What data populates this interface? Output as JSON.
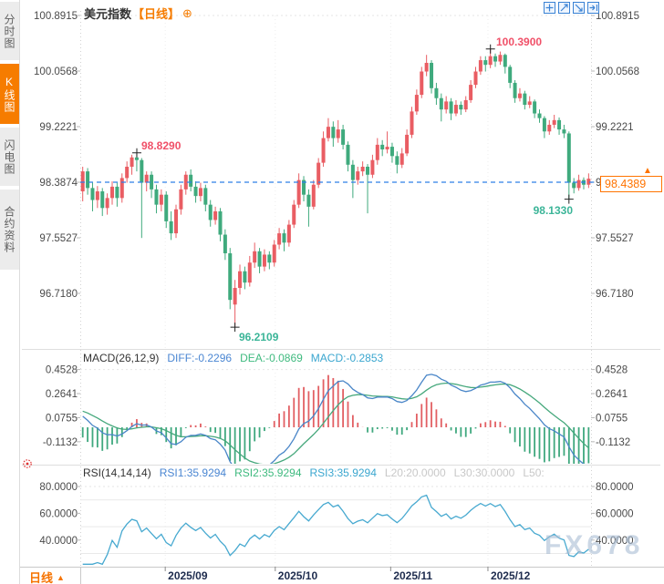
{
  "app": {
    "watermark": "FX678"
  },
  "sidebar": {
    "tabs": [
      {
        "label": "分时图",
        "active": false
      },
      {
        "label": "K线图",
        "active": true
      },
      {
        "label": "闪电图",
        "active": false
      },
      {
        "label": "合约资料",
        "active": false
      }
    ]
  },
  "header": {
    "title": "美元指数",
    "period": "【日线】",
    "add_icon": "⊕"
  },
  "toolbar": {
    "buttons": [
      "pan",
      "scale-x",
      "scale-y",
      "jump-to-latest"
    ]
  },
  "bottom_bar": {
    "period_label": "日线",
    "arrow": "▲"
  },
  "colors": {
    "up": "#e95d63",
    "down": "#3faa7d",
    "dashed_price_line": "#2e7fe8",
    "accent_orange": "#f67c00",
    "diff_line": "#4a86c8",
    "dea_line": "#46a87c",
    "rsi_line": "#47a9d0",
    "hist_up": "#e25f63",
    "hist_down": "#3fa87e",
    "axis_text": "#4a4a4a",
    "x_axis_text": "#1e2c4e",
    "grid": "#e6e6e6",
    "separator": "#dedede",
    "annotation_cross": "#222222",
    "settings_icon_red": "#e23333"
  },
  "chart_data": {
    "type": "candlestick",
    "instrument": "美元指数",
    "period": "日线",
    "price_axis": {
      "tick_labels": [
        "100.8915",
        "100.0568",
        "99.2221",
        "98.3874",
        "97.5527",
        "96.7180"
      ],
      "dashed_level": 98.3874
    },
    "x_axis": {
      "tick_labels": [
        "2025/09",
        "2025/10",
        "2025/11",
        "2025/12"
      ],
      "tick_indices": [
        16.8,
        39.2,
        62.7,
        82.5
      ]
    },
    "annotations": {
      "swing_high": "98.8290",
      "period_high": "100.3900",
      "period_low": "96.2109",
      "recent_low": "98.1330",
      "last_price": "98.4389"
    },
    "candles": [
      [
        98.25,
        98.62,
        98.1,
        98.55
      ],
      [
        98.55,
        98.6,
        98.2,
        98.3
      ],
      [
        98.3,
        98.38,
        97.95,
        98.12
      ],
      [
        98.12,
        98.33,
        98.0,
        98.25
      ],
      [
        98.25,
        98.3,
        97.88,
        98.0
      ],
      [
        98.0,
        98.22,
        97.9,
        98.15
      ],
      [
        98.15,
        98.4,
        98.05,
        98.32
      ],
      [
        98.32,
        98.38,
        98.02,
        98.15
      ],
      [
        98.15,
        98.52,
        98.08,
        98.45
      ],
      [
        98.45,
        98.7,
        98.38,
        98.62
      ],
      [
        98.62,
        98.8,
        98.5,
        98.76
      ],
      [
        98.76,
        98.83,
        98.55,
        98.72
      ],
      [
        98.72,
        98.75,
        97.55,
        98.38
      ],
      [
        98.38,
        98.55,
        98.25,
        98.5
      ],
      [
        98.5,
        98.55,
        98.15,
        98.28
      ],
      [
        98.28,
        98.35,
        97.92,
        98.05
      ],
      [
        98.05,
        98.28,
        97.95,
        98.2
      ],
      [
        98.2,
        98.25,
        97.7,
        97.8
      ],
      [
        97.8,
        97.95,
        97.52,
        97.62
      ],
      [
        97.62,
        98.05,
        97.55,
        97.98
      ],
      [
        97.98,
        98.35,
        97.9,
        98.28
      ],
      [
        98.28,
        98.55,
        98.2,
        98.5
      ],
      [
        98.5,
        98.58,
        98.25,
        98.32
      ],
      [
        98.32,
        98.4,
        98.08,
        98.18
      ],
      [
        98.18,
        98.38,
        98.1,
        98.3
      ],
      [
        98.3,
        98.35,
        97.95,
        98.05
      ],
      [
        98.05,
        98.12,
        97.72,
        97.82
      ],
      [
        97.82,
        98.02,
        97.75,
        97.95
      ],
      [
        97.95,
        98.0,
        97.5,
        97.6
      ],
      [
        97.6,
        97.68,
        97.22,
        97.32
      ],
      [
        97.32,
        97.4,
        96.48,
        96.62
      ],
      [
        96.55,
        96.92,
        96.21,
        96.8
      ],
      [
        96.8,
        97.15,
        96.7,
        97.05
      ],
      [
        97.05,
        97.12,
        96.78,
        96.88
      ],
      [
        96.88,
        97.28,
        96.82,
        97.18
      ],
      [
        97.18,
        97.48,
        97.1,
        97.35
      ],
      [
        97.35,
        97.4,
        97.02,
        97.12
      ],
      [
        97.12,
        97.38,
        97.05,
        97.3
      ],
      [
        97.3,
        97.35,
        97.08,
        97.18
      ],
      [
        97.18,
        97.52,
        97.12,
        97.45
      ],
      [
        97.45,
        97.7,
        97.38,
        97.62
      ],
      [
        97.62,
        97.68,
        97.35,
        97.48
      ],
      [
        97.48,
        97.82,
        97.42,
        97.75
      ],
      [
        97.75,
        98.12,
        97.7,
        98.05
      ],
      [
        98.05,
        98.52,
        98.0,
        98.42
      ],
      [
        98.42,
        98.48,
        98.1,
        98.2
      ],
      [
        98.2,
        98.28,
        97.72,
        98.02
      ],
      [
        98.02,
        98.42,
        97.98,
        98.35
      ],
      [
        98.35,
        98.75,
        98.3,
        98.68
      ],
      [
        98.68,
        99.15,
        98.62,
        99.05
      ],
      [
        99.05,
        99.35,
        99.0,
        99.22
      ],
      [
        99.22,
        99.3,
        98.92,
        99.05
      ],
      [
        99.05,
        99.32,
        98.98,
        99.18
      ],
      [
        99.18,
        99.25,
        98.88,
        98.95
      ],
      [
        98.95,
        99.0,
        98.55,
        98.65
      ],
      [
        98.65,
        98.72,
        98.15,
        98.42
      ],
      [
        98.42,
        98.62,
        98.35,
        98.55
      ],
      [
        98.55,
        98.7,
        98.48,
        98.62
      ],
      [
        98.62,
        98.66,
        97.92,
        98.5
      ],
      [
        98.5,
        98.8,
        98.45,
        98.72
      ],
      [
        98.72,
        99.05,
        98.65,
        98.95
      ],
      [
        98.95,
        99.02,
        98.78,
        98.88
      ],
      [
        98.88,
        99.15,
        98.82,
        98.92
      ],
      [
        98.92,
        98.98,
        98.68,
        98.78
      ],
      [
        98.78,
        98.85,
        98.52,
        98.65
      ],
      [
        98.65,
        98.9,
        98.6,
        98.82
      ],
      [
        98.82,
        99.18,
        98.78,
        99.1
      ],
      [
        99.1,
        99.52,
        99.05,
        99.45
      ],
      [
        99.45,
        99.78,
        99.4,
        99.7
      ],
      [
        99.7,
        100.12,
        99.65,
        100.05
      ],
      [
        100.05,
        100.3,
        99.98,
        100.18
      ],
      [
        100.18,
        100.22,
        99.72,
        99.8
      ],
      [
        99.8,
        99.88,
        99.55,
        99.65
      ],
      [
        99.65,
        99.72,
        99.3,
        99.48
      ],
      [
        99.48,
        99.68,
        99.42,
        99.6
      ],
      [
        99.6,
        99.65,
        99.32,
        99.42
      ],
      [
        99.42,
        99.62,
        99.38,
        99.55
      ],
      [
        99.55,
        99.6,
        99.4,
        99.48
      ],
      [
        99.48,
        99.68,
        99.44,
        99.62
      ],
      [
        99.62,
        99.92,
        99.58,
        99.85
      ],
      [
        99.85,
        100.12,
        99.8,
        100.05
      ],
      [
        100.05,
        100.28,
        100.0,
        100.22
      ],
      [
        100.22,
        100.28,
        100.05,
        100.15
      ],
      [
        100.15,
        100.39,
        100.1,
        100.28
      ],
      [
        100.28,
        100.32,
        100.12,
        100.2
      ],
      [
        100.2,
        100.35,
        100.15,
        100.3
      ],
      [
        100.3,
        100.32,
        100.02,
        100.12
      ],
      [
        100.12,
        100.15,
        99.8,
        99.88
      ],
      [
        99.88,
        99.92,
        99.58,
        99.65
      ],
      [
        99.65,
        99.8,
        99.6,
        99.72
      ],
      [
        99.72,
        99.76,
        99.48,
        99.55
      ],
      [
        99.55,
        99.68,
        99.5,
        99.6
      ],
      [
        99.6,
        99.63,
        99.35,
        99.42
      ],
      [
        99.42,
        99.48,
        99.28,
        99.35
      ],
      [
        99.35,
        99.38,
        99.05,
        99.15
      ],
      [
        99.15,
        99.32,
        99.1,
        99.25
      ],
      [
        99.25,
        99.4,
        99.2,
        99.32
      ],
      [
        99.32,
        99.36,
        99.1,
        99.18
      ],
      [
        99.18,
        99.25,
        99.05,
        99.12
      ],
      [
        99.12,
        99.15,
        98.13,
        98.38
      ],
      [
        98.38,
        98.45,
        98.22,
        98.3
      ],
      [
        98.3,
        98.5,
        98.26,
        98.42
      ],
      [
        98.42,
        98.46,
        98.28,
        98.35
      ],
      [
        98.35,
        98.52,
        98.3,
        98.44
      ]
    ],
    "macd": {
      "name": "MACD(26,12,9)",
      "diff": "DIFF:-0.2296",
      "dea": "DEA:-0.0869",
      "macd": "MACD:-0.2853",
      "tick_labels": [
        "0.4528",
        "0.2641",
        "0.0755",
        "-0.1132"
      ]
    },
    "rsi": {
      "name": "RSI(14,14,14)",
      "r1": "RSI1:35.9294",
      "r2": "RSI2:35.9294",
      "r3": "RSI3:35.9294",
      "l20": "L20:20.0000",
      "l30": "L30:30.0000",
      "l50": "L50:",
      "tick_labels": [
        "80.0000",
        "60.0000",
        "40.0000"
      ]
    }
  }
}
